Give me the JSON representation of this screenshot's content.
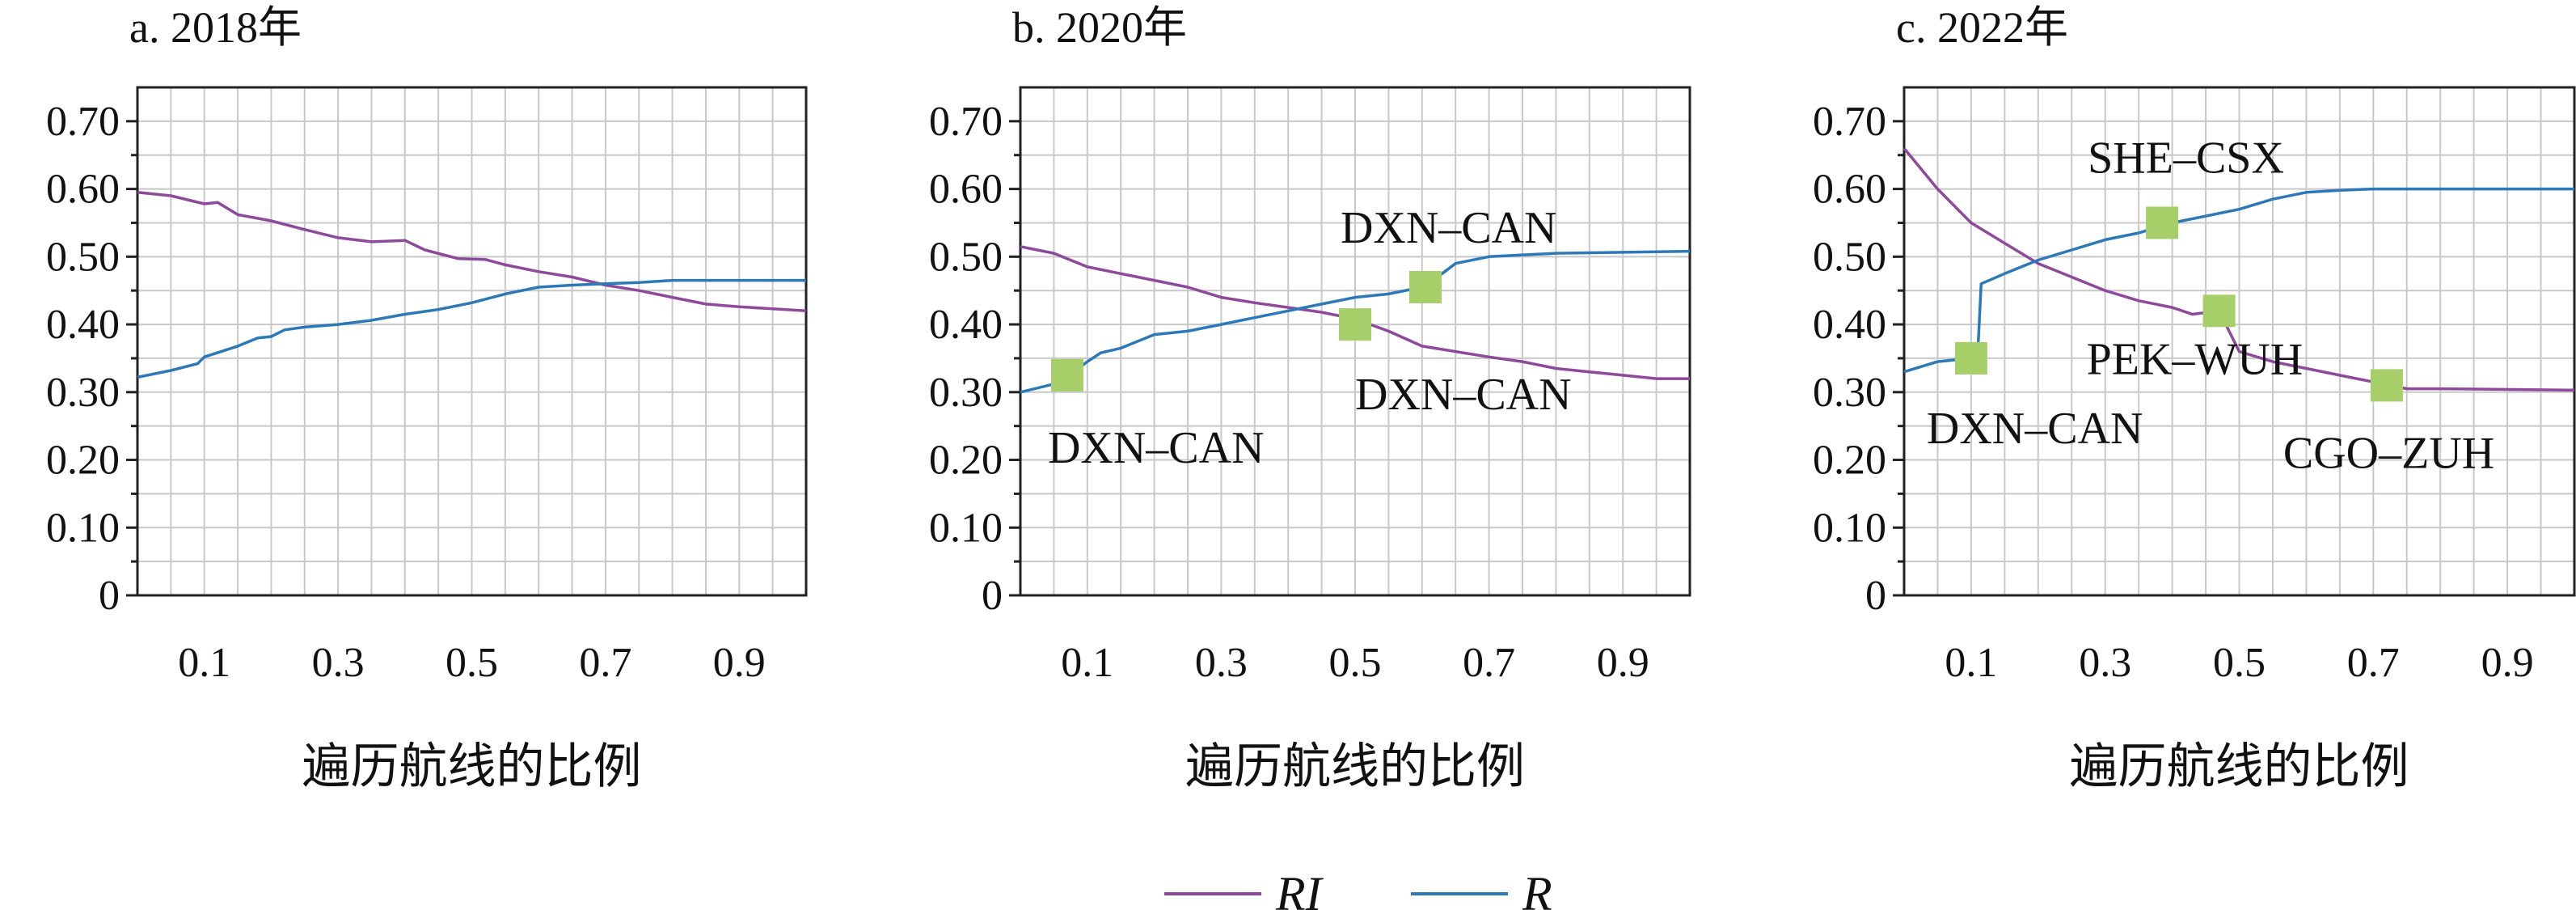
{
  "chart_data": [
    {
      "type": "line",
      "title": "a. 2018年",
      "xlabel": "遍历航线的比例",
      "ylabel": "",
      "xlim": [
        0,
        1
      ],
      "ylim": [
        0,
        0.75
      ],
      "xticks": [
        0.1,
        0.3,
        0.5,
        0.7,
        0.9
      ],
      "xtick_labels": [
        "0.1",
        "0.3",
        "0.5",
        "0.7",
        "0.9"
      ],
      "yticks": [
        0,
        0.1,
        0.2,
        0.3,
        0.4,
        0.5,
        0.6,
        0.7
      ],
      "ytick_labels": [
        "0",
        "0.10",
        "0.20",
        "0.30",
        "0.40",
        "0.50",
        "0.60",
        "0.70"
      ],
      "grid": true,
      "series": [
        {
          "name": "RI",
          "color": "#8e4a9a",
          "points": [
            [
              0,
              0.595
            ],
            [
              0.05,
              0.59
            ],
            [
              0.1,
              0.578
            ],
            [
              0.12,
              0.58
            ],
            [
              0.15,
              0.562
            ],
            [
              0.2,
              0.553
            ],
            [
              0.25,
              0.54
            ],
            [
              0.3,
              0.528
            ],
            [
              0.35,
              0.522
            ],
            [
              0.4,
              0.524
            ],
            [
              0.43,
              0.51
            ],
            [
              0.48,
              0.497
            ],
            [
              0.52,
              0.496
            ],
            [
              0.55,
              0.488
            ],
            [
              0.6,
              0.478
            ],
            [
              0.65,
              0.47
            ],
            [
              0.7,
              0.458
            ],
            [
              0.75,
              0.45
            ],
            [
              0.8,
              0.44
            ],
            [
              0.85,
              0.43
            ],
            [
              0.9,
              0.426
            ],
            [
              0.95,
              0.423
            ],
            [
              1,
              0.42
            ]
          ]
        },
        {
          "name": "R",
          "color": "#2d79b8",
          "points": [
            [
              0,
              0.322
            ],
            [
              0.05,
              0.332
            ],
            [
              0.09,
              0.342
            ],
            [
              0.1,
              0.352
            ],
            [
              0.15,
              0.368
            ],
            [
              0.18,
              0.38
            ],
            [
              0.2,
              0.382
            ],
            [
              0.22,
              0.392
            ],
            [
              0.25,
              0.396
            ],
            [
              0.3,
              0.4
            ],
            [
              0.35,
              0.406
            ],
            [
              0.4,
              0.415
            ],
            [
              0.45,
              0.422
            ],
            [
              0.5,
              0.432
            ],
            [
              0.55,
              0.445
            ],
            [
              0.6,
              0.455
            ],
            [
              0.65,
              0.458
            ],
            [
              0.7,
              0.46
            ],
            [
              0.75,
              0.462
            ],
            [
              0.8,
              0.465
            ],
            [
              0.9,
              0.465
            ],
            [
              1,
              0.465
            ]
          ]
        }
      ],
      "annotations": []
    },
    {
      "type": "line",
      "title": "b. 2020年",
      "xlabel": "遍历航线的比例",
      "ylabel": "",
      "xlim": [
        0,
        1
      ],
      "ylim": [
        0,
        0.75
      ],
      "xticks": [
        0.1,
        0.3,
        0.5,
        0.7,
        0.9
      ],
      "xtick_labels": [
        "0.1",
        "0.3",
        "0.5",
        "0.7",
        "0.9"
      ],
      "yticks": [
        0,
        0.1,
        0.2,
        0.3,
        0.4,
        0.5,
        0.6,
        0.7
      ],
      "ytick_labels": [
        "0",
        "0.10",
        "0.20",
        "0.30",
        "0.40",
        "0.50",
        "0.60",
        "0.70"
      ],
      "grid": true,
      "series": [
        {
          "name": "RI",
          "color": "#8e4a9a",
          "points": [
            [
              0,
              0.515
            ],
            [
              0.05,
              0.505
            ],
            [
              0.1,
              0.485
            ],
            [
              0.15,
              0.475
            ],
            [
              0.2,
              0.465
            ],
            [
              0.25,
              0.455
            ],
            [
              0.3,
              0.44
            ],
            [
              0.35,
              0.432
            ],
            [
              0.4,
              0.425
            ],
            [
              0.45,
              0.418
            ],
            [
              0.5,
              0.408
            ],
            [
              0.55,
              0.39
            ],
            [
              0.6,
              0.368
            ],
            [
              0.65,
              0.36
            ],
            [
              0.7,
              0.352
            ],
            [
              0.75,
              0.345
            ],
            [
              0.8,
              0.335
            ],
            [
              0.85,
              0.33
            ],
            [
              0.9,
              0.325
            ],
            [
              0.95,
              0.32
            ],
            [
              1,
              0.32
            ]
          ]
        },
        {
          "name": "R",
          "color": "#2d79b8",
          "points": [
            [
              0,
              0.3
            ],
            [
              0.05,
              0.312
            ],
            [
              0.08,
              0.33
            ],
            [
              0.1,
              0.345
            ],
            [
              0.12,
              0.358
            ],
            [
              0.15,
              0.365
            ],
            [
              0.2,
              0.385
            ],
            [
              0.25,
              0.39
            ],
            [
              0.3,
              0.4
            ],
            [
              0.35,
              0.41
            ],
            [
              0.4,
              0.42
            ],
            [
              0.45,
              0.43
            ],
            [
              0.5,
              0.44
            ],
            [
              0.55,
              0.445
            ],
            [
              0.6,
              0.455
            ],
            [
              0.63,
              0.475
            ],
            [
              0.65,
              0.49
            ],
            [
              0.7,
              0.5
            ],
            [
              0.8,
              0.505
            ],
            [
              1,
              0.508
            ]
          ]
        }
      ],
      "annotations": [
        {
          "text": "DXN–CAN",
          "x": 0.07,
          "y": 0.325
        },
        {
          "text": "DXN–CAN",
          "x": 0.5,
          "y": 0.4
        },
        {
          "text": "DXN–CAN",
          "x": 0.605,
          "y": 0.455
        }
      ]
    },
    {
      "type": "line",
      "title": "c. 2022年",
      "xlabel": "遍历航线的比例",
      "ylabel": "",
      "xlim": [
        0,
        1
      ],
      "ylim": [
        0,
        0.75
      ],
      "xticks": [
        0.1,
        0.3,
        0.5,
        0.7,
        0.9
      ],
      "xtick_labels": [
        "0.1",
        "0.3",
        "0.5",
        "0.7",
        "0.9"
      ],
      "yticks": [
        0,
        0.1,
        0.2,
        0.3,
        0.4,
        0.5,
        0.6,
        0.7
      ],
      "ytick_labels": [
        "0",
        "0.10",
        "0.20",
        "0.30",
        "0.40",
        "0.50",
        "0.60",
        "0.70"
      ],
      "grid": true,
      "series": [
        {
          "name": "RI",
          "color": "#8e4a9a",
          "points": [
            [
              0,
              0.66
            ],
            [
              0.05,
              0.6
            ],
            [
              0.1,
              0.55
            ],
            [
              0.15,
              0.52
            ],
            [
              0.2,
              0.49
            ],
            [
              0.25,
              0.47
            ],
            [
              0.3,
              0.45
            ],
            [
              0.35,
              0.435
            ],
            [
              0.4,
              0.425
            ],
            [
              0.43,
              0.415
            ],
            [
              0.47,
              0.42
            ],
            [
              0.5,
              0.36
            ],
            [
              0.55,
              0.345
            ],
            [
              0.6,
              0.335
            ],
            [
              0.65,
              0.325
            ],
            [
              0.7,
              0.315
            ],
            [
              0.75,
              0.305
            ],
            [
              0.8,
              0.305
            ],
            [
              1,
              0.303
            ]
          ]
        },
        {
          "name": "R",
          "color": "#2d79b8",
          "points": [
            [
              0,
              0.33
            ],
            [
              0.05,
              0.345
            ],
            [
              0.1,
              0.35
            ],
            [
              0.11,
              0.36
            ],
            [
              0.115,
              0.46
            ],
            [
              0.15,
              0.475
            ],
            [
              0.2,
              0.495
            ],
            [
              0.25,
              0.51
            ],
            [
              0.3,
              0.525
            ],
            [
              0.35,
              0.535
            ],
            [
              0.4,
              0.55
            ],
            [
              0.45,
              0.56
            ],
            [
              0.5,
              0.57
            ],
            [
              0.55,
              0.585
            ],
            [
              0.6,
              0.595
            ],
            [
              0.65,
              0.598
            ],
            [
              0.7,
              0.6
            ],
            [
              1,
              0.6
            ]
          ]
        }
      ],
      "annotations": [
        {
          "text": "DXN–CAN",
          "x": 0.1,
          "y": 0.35
        },
        {
          "text": "SHE–CSX",
          "x": 0.385,
          "y": 0.55
        },
        {
          "text": "PEK–WUH",
          "x": 0.47,
          "y": 0.42
        },
        {
          "text": "CGO–ZUH",
          "x": 0.72,
          "y": 0.31
        }
      ]
    }
  ],
  "legend": {
    "placement": "bottom-center",
    "items": [
      {
        "label": "RI",
        "color": "#8e4a9a"
      },
      {
        "label": "R",
        "color": "#2d79b8"
      }
    ]
  },
  "marker_color": "#a6cf6a"
}
